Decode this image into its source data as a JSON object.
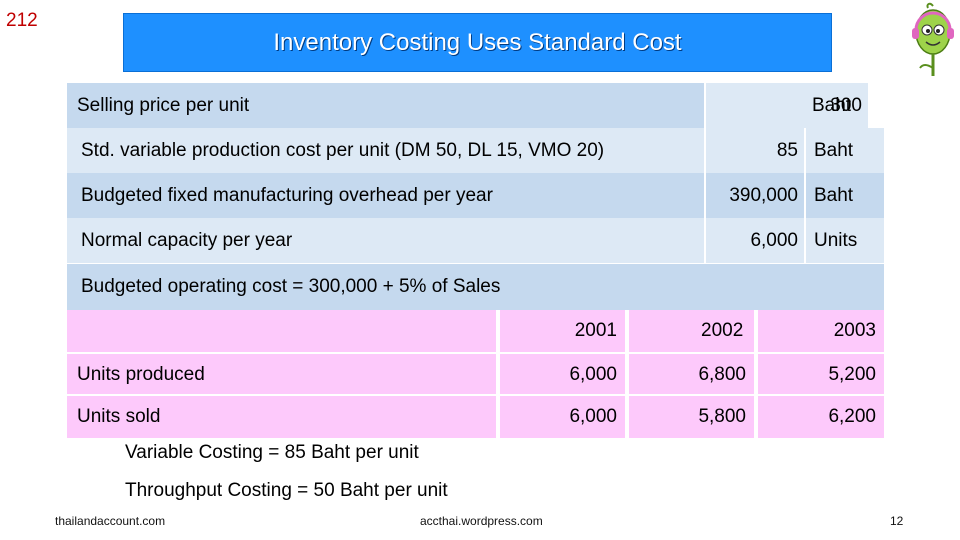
{
  "slide_number_top": "212",
  "title": "Inventory Costing Uses Standard Cost",
  "params": [
    {
      "label": "Selling price per unit",
      "value": "300",
      "unit": "Baht"
    },
    {
      "label": "Std. variable production cost per unit (DM 50, DL 15, VMO 20)",
      "value": "85",
      "unit": "Baht"
    },
    {
      "label": "Budgeted fixed manufacturing overhead per year",
      "value": "390,000",
      "unit": "Baht"
    },
    {
      "label": "Normal capacity per year",
      "value": "6,000",
      "unit": "Units"
    }
  ],
  "budget_line": "Budgeted operating cost = 300,000 + 5% of Sales",
  "table": {
    "years": [
      "2001",
      "2002",
      "2003"
    ],
    "rows": [
      {
        "label": "Units produced",
        "values": [
          "6,000",
          "6,800",
          "5,200"
        ]
      },
      {
        "label": "Units sold",
        "values": [
          "6,000",
          "5,800",
          "6,200"
        ]
      }
    ]
  },
  "notes": [
    "Variable Costing = 85 Baht per unit",
    "Throughput Costing = 50 Baht per unit"
  ],
  "footer": {
    "left": "thailandaccount.com",
    "center": "accthai.wordpress.com",
    "page": "12"
  },
  "colors": {
    "title_bg": "#1e90ff",
    "row_blue_dark": "#c5d9ee",
    "row_blue_light": "#dde9f5",
    "table_pink": "#fdc9fb",
    "slide_number_red": "#c00000"
  },
  "icons": {
    "mascot": "green-cartoon-character-with-headphones"
  }
}
